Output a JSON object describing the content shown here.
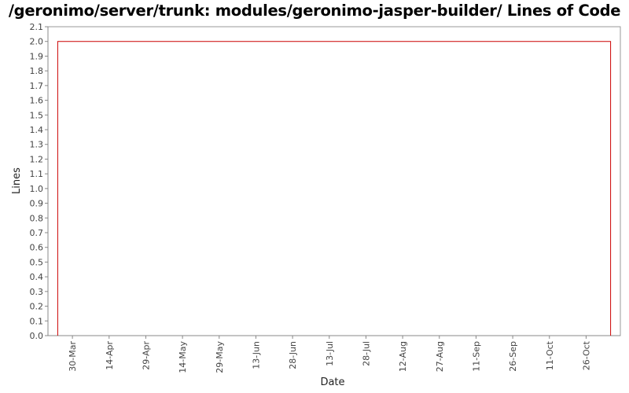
{
  "chart_data": {
    "type": "line",
    "title": "/geronimo/server/trunk: modules/geronimo-jasper-builder/ Lines of Code",
    "xlabel": "Date",
    "ylabel": "Lines",
    "ylim": [
      0.0,
      2.1
    ],
    "y_ticks": [
      "0.0",
      "0.1",
      "0.2",
      "0.3",
      "0.4",
      "0.5",
      "0.6",
      "0.7",
      "0.8",
      "0.9",
      "1.0",
      "1.1",
      "1.2",
      "1.3",
      "1.4",
      "1.5",
      "1.6",
      "1.7",
      "1.8",
      "1.9",
      "2.0",
      "2.1"
    ],
    "xlim": [
      "2006-03-20",
      "2006-11-09"
    ],
    "x_ticks": [
      {
        "label": "30-Mar",
        "date": "2006-03-30"
      },
      {
        "label": "14-Apr",
        "date": "2006-04-14"
      },
      {
        "label": "29-Apr",
        "date": "2006-04-29"
      },
      {
        "label": "14-May",
        "date": "2006-05-14"
      },
      {
        "label": "29-May",
        "date": "2006-05-29"
      },
      {
        "label": "13-Jun",
        "date": "2006-06-13"
      },
      {
        "label": "28-Jun",
        "date": "2006-06-28"
      },
      {
        "label": "13-Jul",
        "date": "2006-07-13"
      },
      {
        "label": "28-Jul",
        "date": "2006-07-28"
      },
      {
        "label": "12-Aug",
        "date": "2006-08-12"
      },
      {
        "label": "27-Aug",
        "date": "2006-08-27"
      },
      {
        "label": "11-Sep",
        "date": "2006-09-11"
      },
      {
        "label": "26-Sep",
        "date": "2006-09-26"
      },
      {
        "label": "11-Oct",
        "date": "2006-10-11"
      },
      {
        "label": "26-Oct",
        "date": "2006-10-26"
      }
    ],
    "grid": false,
    "legend": "none",
    "series": [
      {
        "color": "#cc0000",
        "points": [
          {
            "x": "2006-03-24",
            "y": 0
          },
          {
            "x": "2006-03-24",
            "y": 2
          },
          {
            "x": "2006-11-05",
            "y": 2
          },
          {
            "x": "2006-11-05",
            "y": 0
          }
        ]
      }
    ]
  }
}
